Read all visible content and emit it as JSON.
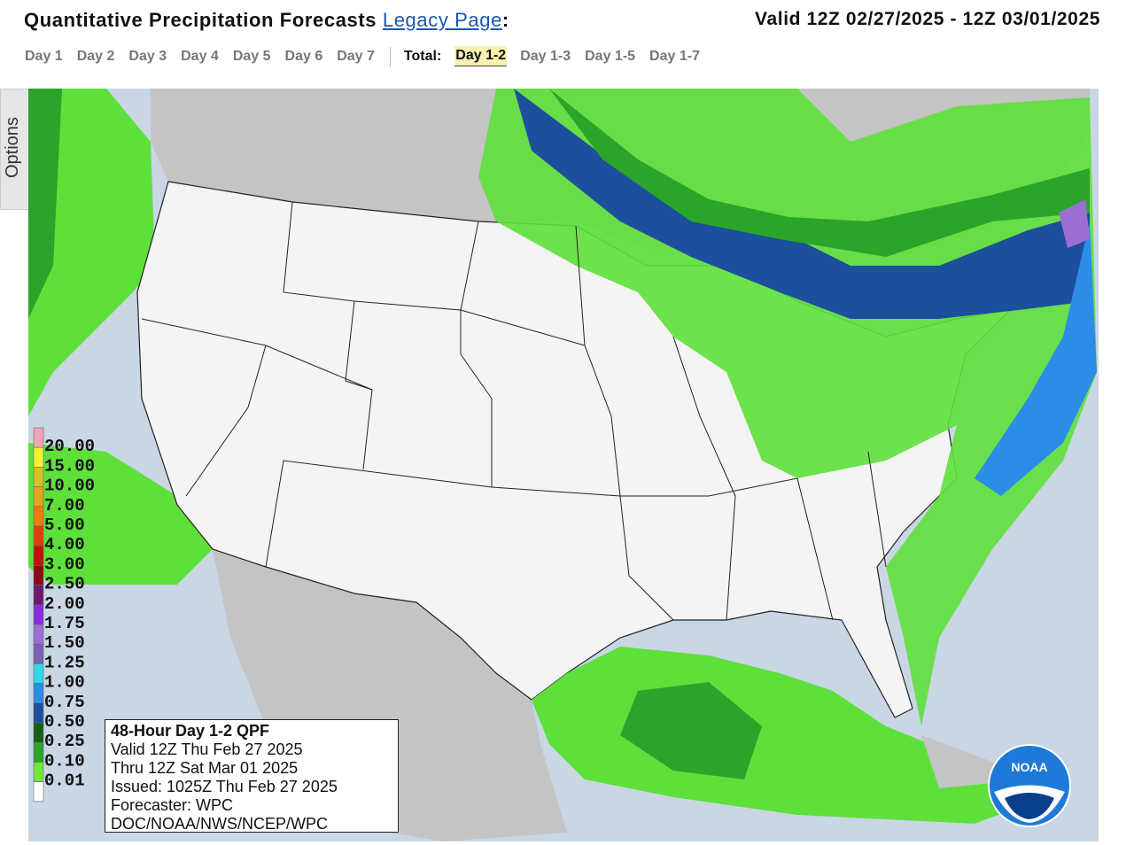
{
  "header": {
    "title": "Quantitative Precipitation Forecasts",
    "link": "Legacy Page",
    "link_suffix": ":",
    "valid": "Valid 12Z 02/27/2025 - 12Z 03/01/2025"
  },
  "tabs": {
    "days": [
      "Day 1",
      "Day 2",
      "Day 3",
      "Day 4",
      "Day 5",
      "Day 6",
      "Day 7"
    ],
    "total_label": "Total:",
    "totals": [
      {
        "label": "Day 1-2",
        "selected": true
      },
      {
        "label": "Day 1-3",
        "selected": false
      },
      {
        "label": "Day 1-5",
        "selected": false
      },
      {
        "label": "Day 1-7",
        "selected": false
      }
    ]
  },
  "options_tab": "Options",
  "legend": {
    "items": [
      {
        "label": "20.00",
        "color": "#f3a3b8"
      },
      {
        "label": "15.00",
        "color": "#f5f033"
      },
      {
        "label": "10.00",
        "color": "#d4c128"
      },
      {
        "label": "7.00",
        "color": "#e8a21c"
      },
      {
        "label": "5.00",
        "color": "#ef7a12"
      },
      {
        "label": "4.00",
        "color": "#e63a10"
      },
      {
        "label": "3.00",
        "color": "#c40f0f"
      },
      {
        "label": "2.50",
        "color": "#8c0a14"
      },
      {
        "label": "2.00",
        "color": "#6d1a6f"
      },
      {
        "label": "1.75",
        "color": "#8a2be2"
      },
      {
        "label": "1.50",
        "color": "#9b6fd1"
      },
      {
        "label": "1.25",
        "color": "#7b5fb6"
      },
      {
        "label": "1.00",
        "color": "#30d7e6"
      },
      {
        "label": "0.75",
        "color": "#2b8de8"
      },
      {
        "label": "0.50",
        "color": "#1c4f9c"
      },
      {
        "label": "0.25",
        "color": "#155f18"
      },
      {
        "label": "0.10",
        "color": "#2aa52a"
      },
      {
        "label": "0.01",
        "color": "#6ee83a"
      }
    ],
    "base_color": "#ffffff"
  },
  "info_box": {
    "lines": [
      "48-Hour Day 1-2 QPF",
      "Valid 12Z Thu Feb 27 2025",
      "Thru 12Z Sat Mar 01 2025",
      "Issued: 1025Z Thu Feb 27 2025",
      "Forecaster: WPC",
      "DOC/NOAA/NWS/NCEP/WPC"
    ]
  },
  "logo": "NOAA"
}
